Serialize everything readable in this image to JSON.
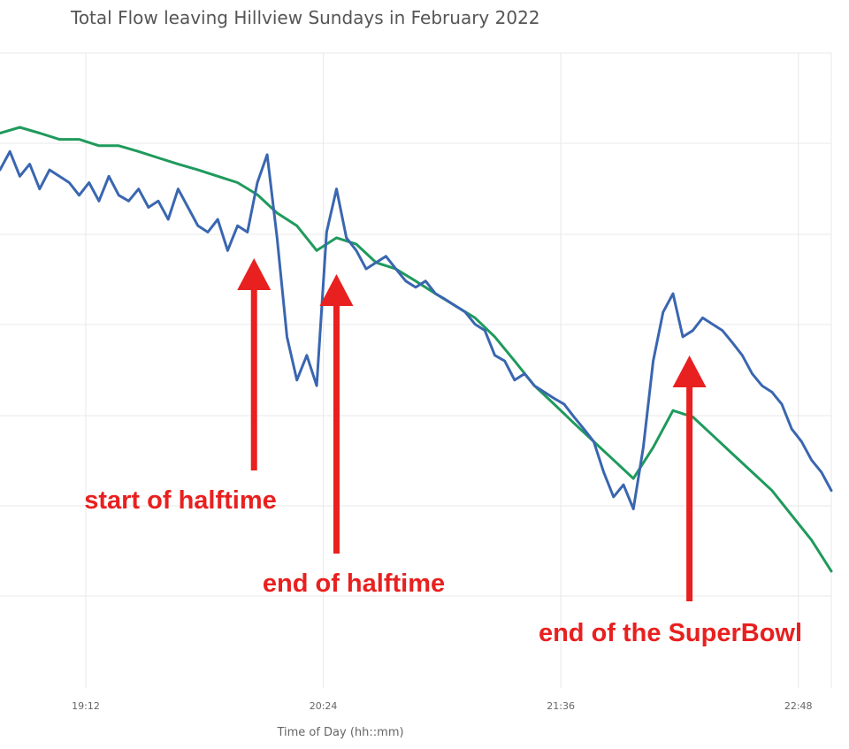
{
  "chart_data": {
    "type": "line",
    "title": "Total Flow leaving Hillview Sundays in February 2022",
    "xlabel": "Time of Day (hh::mm)",
    "ylabel": "",
    "x_ticks": [
      "19:12",
      "20:24",
      "21:36",
      "22:48"
    ],
    "x_range": [
      "18:46",
      "22:58"
    ],
    "y_range": [
      0,
      100
    ],
    "grid": true,
    "legend": "none",
    "colors": {
      "blue": "#3a66b0",
      "green": "#1f9a5c",
      "annotation": "#e8201f",
      "grid": "#e8e8e8"
    },
    "series": [
      {
        "color": "#3a66b0",
        "x": [
          "18:46",
          "18:49",
          "18:52",
          "18:55",
          "18:58",
          "19:01",
          "19:04",
          "19:07",
          "19:10",
          "19:13",
          "19:16",
          "19:19",
          "19:22",
          "19:25",
          "19:28",
          "19:31",
          "19:34",
          "19:37",
          "19:40",
          "19:43",
          "19:46",
          "19:49",
          "19:52",
          "19:55",
          "19:58",
          "20:01",
          "20:04",
          "20:07",
          "20:10",
          "20:13",
          "20:16",
          "20:19",
          "20:22",
          "20:25",
          "20:28",
          "20:31",
          "20:34",
          "20:37",
          "20:40",
          "20:43",
          "20:46",
          "20:49",
          "20:52",
          "20:55",
          "20:58",
          "21:01",
          "21:04",
          "21:07",
          "21:10",
          "21:13",
          "21:16",
          "21:19",
          "21:22",
          "21:25",
          "21:28",
          "21:31",
          "21:34",
          "21:37",
          "21:40",
          "21:43",
          "21:46",
          "21:49",
          "21:52",
          "21:55",
          "21:58",
          "22:01",
          "22:04",
          "22:07",
          "22:10",
          "22:13",
          "22:16",
          "22:19",
          "22:22",
          "22:25",
          "22:28",
          "22:31",
          "22:34",
          "22:37",
          "22:40",
          "22:43",
          "22:46",
          "22:49",
          "22:52",
          "22:55",
          "22:58"
        ],
        "y": [
          81.6,
          84.5,
          80.6,
          82.5,
          78.6,
          81.6,
          80.6,
          79.6,
          77.6,
          79.6,
          76.7,
          80.6,
          77.6,
          76.7,
          78.6,
          75.7,
          76.7,
          73.8,
          78.6,
          75.7,
          72.8,
          71.8,
          73.8,
          68.9,
          72.8,
          71.8,
          79.6,
          84.0,
          70.9,
          55.3,
          48.5,
          52.4,
          47.6,
          71.8,
          78.6,
          70.9,
          68.9,
          66.0,
          67.0,
          68.0,
          66.0,
          64.1,
          63.1,
          64.1,
          62.1,
          61.2,
          60.2,
          59.2,
          57.3,
          56.3,
          52.4,
          51.5,
          48.5,
          49.5,
          47.6,
          46.6,
          45.6,
          44.7,
          42.7,
          40.8,
          38.8,
          34.0,
          30.1,
          32.0,
          28.2,
          37.9,
          51.5,
          59.2,
          62.1,
          55.3,
          56.3,
          58.3,
          57.3,
          56.3,
          54.4,
          52.4,
          49.5,
          47.6,
          46.6,
          44.7,
          40.8,
          38.8,
          35.9,
          34.0,
          31.1
        ]
      },
      {
        "color": "#1f9a5c",
        "x": [
          "18:46",
          "18:52",
          "18:58",
          "19:04",
          "19:10",
          "19:16",
          "19:22",
          "19:28",
          "19:34",
          "19:40",
          "19:46",
          "19:52",
          "19:58",
          "20:04",
          "20:10",
          "20:16",
          "20:22",
          "20:28",
          "20:34",
          "20:40",
          "20:46",
          "20:52",
          "20:58",
          "21:04",
          "21:10",
          "21:16",
          "21:22",
          "21:28",
          "21:34",
          "21:40",
          "21:46",
          "21:52",
          "21:58",
          "22:04",
          "22:10",
          "22:16",
          "22:22",
          "22:28",
          "22:34",
          "22:40",
          "22:46",
          "22:52",
          "22:58"
        ],
        "y": [
          87.4,
          88.3,
          87.4,
          86.4,
          86.4,
          85.4,
          85.4,
          84.5,
          83.5,
          82.5,
          81.6,
          80.6,
          79.6,
          77.7,
          74.8,
          72.8,
          68.9,
          70.9,
          69.9,
          67.0,
          66.0,
          64.1,
          62.1,
          60.2,
          58.3,
          55.3,
          51.5,
          47.6,
          44.7,
          41.7,
          38.8,
          35.9,
          33.0,
          37.9,
          43.7,
          42.7,
          39.8,
          36.9,
          34.0,
          31.1,
          27.2,
          23.3,
          18.4
        ]
      }
    ],
    "annotations": [
      {
        "text": "start of halftime",
        "x": "20:03"
      },
      {
        "text": "end of halftime",
        "x": "20:28"
      },
      {
        "text": "end of the SuperBowl",
        "x": "22:15"
      }
    ]
  }
}
